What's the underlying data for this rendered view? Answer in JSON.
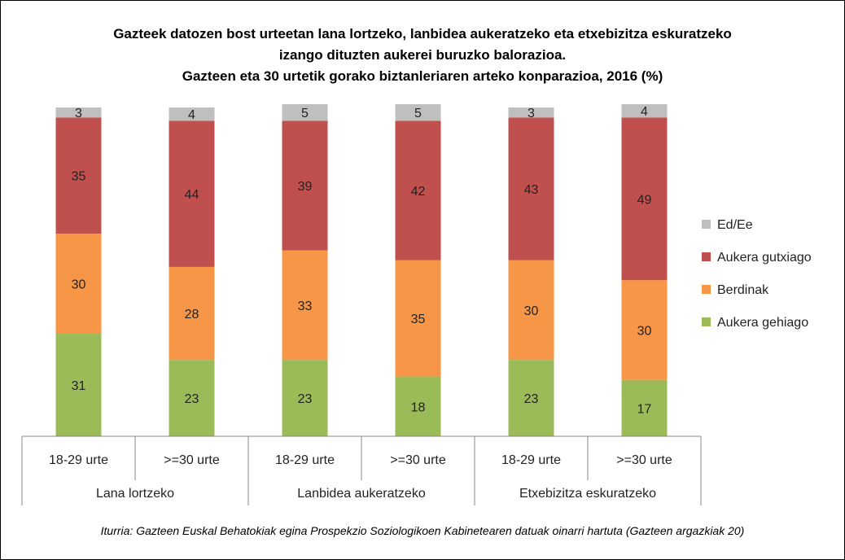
{
  "chart_data": {
    "type": "bar",
    "stacked": true,
    "percent_scale": [
      0,
      100
    ],
    "title_lines": [
      "Gazteek datozen bost urteetan lana lortzeko, lanbidea aukeratzeko eta etxebizitza eskuratzeko",
      "izango dituzten aukerei buruzko balorazioa.",
      "Gazteen eta 30 urtetik gorako biztanleriaren arteko konparazioa, 2016 (%)"
    ],
    "groups": [
      {
        "label": "Lana lortzeko",
        "categories": [
          "18-29 urte",
          ">=30 urte"
        ]
      },
      {
        "label": "Lanbidea aukeratzeko",
        "categories": [
          "18-29 urte",
          ">=30 urte"
        ]
      },
      {
        "label": "Etxebizitza eskuratzeko",
        "categories": [
          "18-29 urte",
          ">=30 urte"
        ]
      }
    ],
    "series": [
      {
        "name": "Aukera gehiago",
        "color": "#9bbb59",
        "values": [
          31,
          23,
          23,
          18,
          23,
          17
        ]
      },
      {
        "name": "Berdinak",
        "color": "#f79646",
        "values": [
          30,
          28,
          33,
          35,
          30,
          30
        ]
      },
      {
        "name": "Aukera gutxiago",
        "color": "#c0504d",
        "values": [
          35,
          44,
          39,
          42,
          43,
          49
        ]
      },
      {
        "name": "Ed/Ee",
        "color": "#bfbfbf",
        "values": [
          3,
          4,
          5,
          5,
          3,
          4
        ]
      }
    ],
    "legend_order": [
      "Ed/Ee",
      "Aukera gutxiago",
      "Berdinak",
      "Aukera gehiago"
    ],
    "legend_position": "right",
    "grid": false,
    "source": "Iturria: Gazteen Euskal Behatokiak egina Prospekzio Soziologikoen Kabinetearen datuak oinarri hartuta (Gazteen argazkiak 20)"
  }
}
